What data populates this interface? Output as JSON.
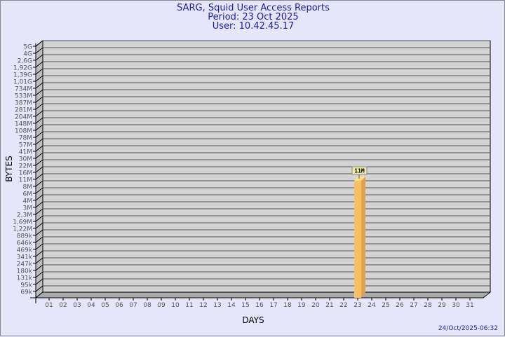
{
  "title": "SARG, Squid User Access Reports",
  "period": "Period: 23 Oct 2025",
  "user": "User: 10.42.45.17",
  "footer": "24/Oct/2025-06:32",
  "chart_data": {
    "type": "bar",
    "title": "SARG, Squid User Access Reports",
    "xlabel": "DAYS",
    "ylabel": "BYTES",
    "y_scale": "log (categorical tick labels)",
    "y_ticks": [
      "5G",
      "4G",
      "2,6G",
      "1,92G",
      "1,39G",
      "1,01G",
      "734M",
      "533M",
      "387M",
      "281M",
      "204M",
      "148M",
      "108M",
      "78M",
      "57M",
      "41M",
      "30M",
      "22M",
      "16M",
      "11M",
      "8M",
      "6M",
      "4M",
      "3M",
      "2,3M",
      "1,69M",
      "1,22M",
      "889k",
      "646k",
      "469k",
      "341k",
      "247k",
      "180k",
      "131k",
      "95k",
      "69k"
    ],
    "categories": [
      "01",
      "02",
      "03",
      "04",
      "05",
      "06",
      "07",
      "08",
      "09",
      "10",
      "11",
      "12",
      "13",
      "14",
      "15",
      "16",
      "17",
      "18",
      "19",
      "20",
      "21",
      "22",
      "23",
      "24",
      "25",
      "26",
      "27",
      "28",
      "29",
      "30",
      "31"
    ],
    "bars": [
      {
        "category": "23",
        "value": "11M"
      }
    ],
    "grid": true,
    "colors": {
      "bar": "#f9c063",
      "bar_side": "#e0a24c",
      "bar_top": "#fde08a",
      "wall": "#d3d3d3",
      "background": "#e6e6fa",
      "title": "#1a1aa8",
      "label_box": "#f0eca8"
    }
  }
}
